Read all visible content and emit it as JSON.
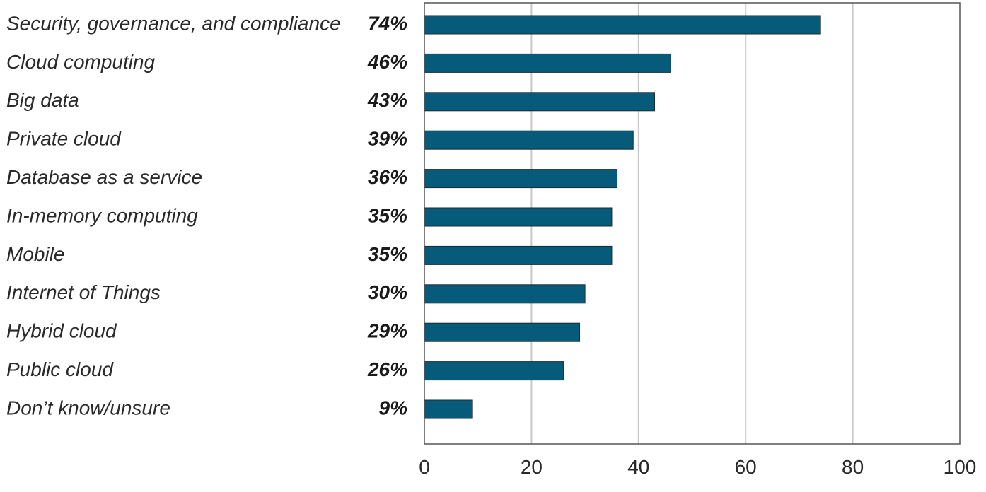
{
  "chart_data": {
    "type": "bar",
    "orientation": "horizontal",
    "categories": [
      "Security, governance, and compliance",
      "Cloud computing",
      "Big data",
      "Private cloud",
      "Database as a service",
      "In-memory computing",
      "Mobile",
      "Internet of Things",
      "Hybrid cloud",
      "Public cloud",
      "Don’t know/unsure"
    ],
    "values": [
      74,
      46,
      43,
      39,
      36,
      35,
      35,
      30,
      29,
      26,
      9
    ],
    "value_labels": [
      "74%",
      "46%",
      "43%",
      "39%",
      "36%",
      "35%",
      "35%",
      "30%",
      "29%",
      "26%",
      "9%"
    ],
    "xlim": [
      0,
      100
    ],
    "xticks": [
      0,
      20,
      40,
      60,
      80,
      100
    ],
    "tick_labels": [
      "0",
      "20",
      "40",
      "60",
      "80",
      "100"
    ],
    "grid": "vertical",
    "legend": "none",
    "colors": {
      "bar": "#075b7a",
      "bar_outline": "#1d2b33",
      "grid": "#c8c8c8",
      "frame": "#555555"
    }
  }
}
